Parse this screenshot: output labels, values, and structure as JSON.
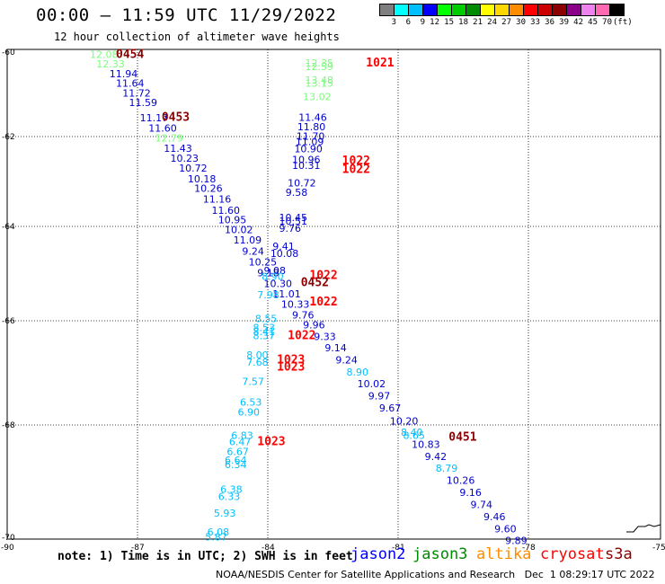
{
  "title": "00:00 – 11:59 UTC 11/29/2022",
  "subtitle": "12 hour collection of altimeter wave heights",
  "scale": {
    "labels": [
      "3",
      "6",
      "9",
      "12",
      "15",
      "18",
      "21",
      "24",
      "27",
      "30",
      "33",
      "36",
      "39",
      "42",
      "45",
      "70"
    ],
    "unit": "(ft)",
    "colors": [
      "#7f7f7f",
      "#00ffff",
      "#00bfff",
      "#0000ff",
      "#00ff00",
      "#00cd00",
      "#008b00",
      "#ffff00",
      "#ffd700",
      "#ff8c00",
      "#ff0000",
      "#cd0000",
      "#8b0000",
      "#8b008b",
      "#ee82ee",
      "#ff69b4",
      "#000000"
    ]
  },
  "axes": {
    "lat_labels": [
      "-60",
      "-62",
      "-64",
      "-66",
      "-68",
      "-70"
    ],
    "lon_labels": [
      "-90",
      "-87",
      "-84",
      "-81",
      "-78",
      "-75"
    ]
  },
  "observations": [
    {
      "v": "12.08",
      "c": "#7cfc7c",
      "lon": -88.1,
      "lat": -60.12
    },
    {
      "v": "12.33",
      "c": "#7cfc7c",
      "lon": -87.95,
      "lat": -60.32
    },
    {
      "v": "11.94",
      "c": "#0000cd",
      "lon": -87.65,
      "lat": -60.52
    },
    {
      "v": "11.64",
      "c": "#0000cd",
      "lon": -87.5,
      "lat": -60.72
    },
    {
      "v": "11.72",
      "c": "#0000cd",
      "lon": -87.35,
      "lat": -60.92
    },
    {
      "v": "11.59",
      "c": "#0000cd",
      "lon": -87.2,
      "lat": -61.12
    },
    {
      "v": "11.17",
      "c": "#0000cd",
      "lon": -86.95,
      "lat": -61.43
    },
    {
      "v": "11.60",
      "c": "#0000cd",
      "lon": -86.75,
      "lat": -61.65
    },
    {
      "v": "12.79",
      "c": "#7cfc7c",
      "lon": -86.6,
      "lat": -61.85
    },
    {
      "v": "11.43",
      "c": "#0000cd",
      "lon": -86.4,
      "lat": -62.07
    },
    {
      "v": "10.23",
      "c": "#0000cd",
      "lon": -86.25,
      "lat": -62.27
    },
    {
      "v": "10.72",
      "c": "#0000cd",
      "lon": -86.05,
      "lat": -62.48
    },
    {
      "v": "10.18",
      "c": "#0000cd",
      "lon": -85.85,
      "lat": -62.7
    },
    {
      "v": "10.26",
      "c": "#0000cd",
      "lon": -85.7,
      "lat": -62.9
    },
    {
      "v": "11.16",
      "c": "#0000cd",
      "lon": -85.5,
      "lat": -63.12
    },
    {
      "v": "11.60",
      "c": "#0000cd",
      "lon": -85.3,
      "lat": -63.35
    },
    {
      "v": "10.95",
      "c": "#0000cd",
      "lon": -85.15,
      "lat": -63.55
    },
    {
      "v": "10.02",
      "c": "#0000cd",
      "lon": -85.0,
      "lat": -63.75
    },
    {
      "v": "11.09",
      "c": "#0000cd",
      "lon": -84.8,
      "lat": -63.97
    },
    {
      "v": "9.24",
      "c": "#0000cd",
      "lon": -84.6,
      "lat": -64.2
    },
    {
      "v": "10.25",
      "c": "#0000cd",
      "lon": -84.45,
      "lat": -64.42
    },
    {
      "v": "9.18",
      "c": "#0000cd",
      "lon": -84.25,
      "lat": -64.65
    },
    {
      "v": "10.30",
      "c": "#0000cd",
      "lon": -84.1,
      "lat": -64.87
    },
    {
      "v": "11.01",
      "c": "#0000cd",
      "lon": -83.9,
      "lat": -65.08
    },
    {
      "v": "10.33",
      "c": "#0000cd",
      "lon": -83.7,
      "lat": -65.3
    },
    {
      "v": "9.76",
      "c": "#0000cd",
      "lon": -83.45,
      "lat": -65.52
    },
    {
      "v": "9.96",
      "c": "#0000cd",
      "lon": -83.2,
      "lat": -65.73
    },
    {
      "v": "9.33",
      "c": "#0000cd",
      "lon": -82.95,
      "lat": -65.97
    },
    {
      "v": "9.14",
      "c": "#0000cd",
      "lon": -82.7,
      "lat": -66.2
    },
    {
      "v": "9.24",
      "c": "#0000cd",
      "lon": -82.45,
      "lat": -66.45
    },
    {
      "v": "8.90",
      "c": "#00bfff",
      "lon": -82.2,
      "lat": -66.7
    },
    {
      "v": "10.02",
      "c": "#0000cd",
      "lon": -81.95,
      "lat": -66.95
    },
    {
      "v": "9.97",
      "c": "#0000cd",
      "lon": -81.7,
      "lat": -67.2
    },
    {
      "v": "9.67",
      "c": "#0000cd",
      "lon": -81.45,
      "lat": -67.45
    },
    {
      "v": "10.20",
      "c": "#0000cd",
      "lon": -81.2,
      "lat": -67.72
    },
    {
      "v": "8.40",
      "c": "#00bfff",
      "lon": -80.95,
      "lat": -67.95
    },
    {
      "v": "8.65",
      "c": "#00bfff",
      "lon": -80.9,
      "lat": -68.02
    },
    {
      "v": "10.83",
      "c": "#0000cd",
      "lon": -80.7,
      "lat": -68.2
    },
    {
      "v": "9.42",
      "c": "#0000cd",
      "lon": -80.4,
      "lat": -68.45
    },
    {
      "v": "8.79",
      "c": "#00bfff",
      "lon": -80.15,
      "lat": -68.7
    },
    {
      "v": "10.26",
      "c": "#0000cd",
      "lon": -79.9,
      "lat": -68.95
    },
    {
      "v": "9.16",
      "c": "#0000cd",
      "lon": -79.6,
      "lat": -69.2
    },
    {
      "v": "9.74",
      "c": "#0000cd",
      "lon": -79.35,
      "lat": -69.45
    },
    {
      "v": "9.46",
      "c": "#0000cd",
      "lon": -79.05,
      "lat": -69.7
    },
    {
      "v": "9.60",
      "c": "#0000cd",
      "lon": -78.8,
      "lat": -69.95
    },
    {
      "v": "9.89",
      "c": "#0000cd",
      "lon": -78.55,
      "lat": -70.2
    },
    {
      "v": "12.35",
      "c": "#7cfc7c",
      "lon": -83.15,
      "lat": -60.3
    },
    {
      "v": "12.59",
      "c": "#7cfc7c",
      "lon": -83.15,
      "lat": -60.37
    },
    {
      "v": "13.48",
      "c": "#7cfc7c",
      "lon": -83.15,
      "lat": -60.65
    },
    {
      "v": "13.15",
      "c": "#7cfc7c",
      "lon": -83.15,
      "lat": -60.72
    },
    {
      "v": "13.02",
      "c": "#7cfc7c",
      "lon": -83.2,
      "lat": -61.0
    },
    {
      "v": "11.46",
      "c": "#0000cd",
      "lon": -83.3,
      "lat": -61.42
    },
    {
      "v": "11.80",
      "c": "#0000cd",
      "lon": -83.33,
      "lat": -61.62
    },
    {
      "v": "11.70",
      "c": "#0000cd",
      "lon": -83.35,
      "lat": -61.82
    },
    {
      "v": "11.09",
      "c": "#0000cd",
      "lon": -83.37,
      "lat": -61.93
    },
    {
      "v": "10.90",
      "c": "#0000cd",
      "lon": -83.4,
      "lat": -62.08
    },
    {
      "v": "10.96",
      "c": "#0000cd",
      "lon": -83.45,
      "lat": -62.3
    },
    {
      "v": "10.31",
      "c": "#0000cd",
      "lon": -83.45,
      "lat": -62.42
    },
    {
      "v": "10.72",
      "c": "#0000cd",
      "lon": -83.55,
      "lat": -62.78
    },
    {
      "v": "9.58",
      "c": "#0000cd",
      "lon": -83.6,
      "lat": -62.98
    },
    {
      "v": "10.45",
      "c": "#0000cd",
      "lon": -83.75,
      "lat": -63.5
    },
    {
      "v": "10.51",
      "c": "#0000cd",
      "lon": -83.75,
      "lat": -63.58
    },
    {
      "v": "9.76",
      "c": "#0000cd",
      "lon": -83.75,
      "lat": -63.72
    },
    {
      "v": "9.41",
      "c": "#0000cd",
      "lon": -83.9,
      "lat": -64.1
    },
    {
      "v": "10.08",
      "c": "#0000cd",
      "lon": -83.95,
      "lat": -64.25
    },
    {
      "v": "9.08",
      "c": "#0000cd",
      "lon": -84.1,
      "lat": -64.6
    },
    {
      "v": "8.90",
      "c": "#00bfff",
      "lon": -84.15,
      "lat": -64.72
    },
    {
      "v": "7.98",
      "c": "#00bfff",
      "lon": -84.25,
      "lat": -65.1
    },
    {
      "v": "8.55",
      "c": "#00bfff",
      "lon": -84.3,
      "lat": -65.6
    },
    {
      "v": "8.53",
      "c": "#00bfff",
      "lon": -84.35,
      "lat": -65.78
    },
    {
      "v": "8.41",
      "c": "#00bfff",
      "lon": -84.35,
      "lat": -65.87
    },
    {
      "v": "8.37",
      "c": "#00bfff",
      "lon": -84.35,
      "lat": -65.95
    },
    {
      "v": "8.00",
      "c": "#00bfff",
      "lon": -84.5,
      "lat": -66.35
    },
    {
      "v": "7.68",
      "c": "#00bfff",
      "lon": -84.5,
      "lat": -66.5
    },
    {
      "v": "7.57",
      "c": "#00bfff",
      "lon": -84.6,
      "lat": -66.9
    },
    {
      "v": "6.53",
      "c": "#00bfff",
      "lon": -84.65,
      "lat": -67.33
    },
    {
      "v": "6.90",
      "c": "#00bfff",
      "lon": -84.7,
      "lat": -67.53
    },
    {
      "v": "6.83",
      "c": "#00bfff",
      "lon": -84.85,
      "lat": -68.02
    },
    {
      "v": "6.47",
      "c": "#00bfff",
      "lon": -84.9,
      "lat": -68.15
    },
    {
      "v": "6.67",
      "c": "#00bfff",
      "lon": -84.95,
      "lat": -68.35
    },
    {
      "v": "6.64",
      "c": "#00bfff",
      "lon": -85.0,
      "lat": -68.53
    },
    {
      "v": "6.34",
      "c": "#00bfff",
      "lon": -85.0,
      "lat": -68.62
    },
    {
      "v": "6.38",
      "c": "#00bfff",
      "lon": -85.1,
      "lat": -69.13
    },
    {
      "v": "6.33",
      "c": "#00bfff",
      "lon": -85.15,
      "lat": -69.28
    },
    {
      "v": "5.93",
      "c": "#00bfff",
      "lon": -85.25,
      "lat": -69.63
    },
    {
      "v": "6.08",
      "c": "#00bfff",
      "lon": -85.4,
      "lat": -70.02
    },
    {
      "v": "5.87",
      "c": "#00bfff",
      "lon": -85.45,
      "lat": -70.12
    }
  ],
  "time_stamps": [
    {
      "t": "0454",
      "c": "#8b0000",
      "lon": -87.5,
      "lat": -60.12
    },
    {
      "t": "0453",
      "c": "#8b0000",
      "lon": -86.45,
      "lat": -61.42
    },
    {
      "t": "1021",
      "c": "#ff0000",
      "lon": -81.75,
      "lat": -60.3
    },
    {
      "t": "1022",
      "c": "#ff0000",
      "lon": -82.3,
      "lat": -62.33
    },
    {
      "t": "1022",
      "c": "#ff0000",
      "lon": -82.3,
      "lat": -62.5
    },
    {
      "t": "1022",
      "c": "#ff0000",
      "lon": -83.05,
      "lat": -64.7
    },
    {
      "t": "0452",
      "c": "#8b0000",
      "lon": -83.25,
      "lat": -64.85
    },
    {
      "t": "1022",
      "c": "#ff0000",
      "lon": -83.05,
      "lat": -65.25
    },
    {
      "t": "1022",
      "c": "#ff0000",
      "lon": -83.55,
      "lat": -65.95
    },
    {
      "t": "1023",
      "c": "#ff0000",
      "lon": -83.8,
      "lat": -66.45
    },
    {
      "t": "1023",
      "c": "#ff0000",
      "lon": -83.8,
      "lat": -66.6
    },
    {
      "t": "1023",
      "c": "#ff0000",
      "lon": -84.25,
      "lat": -68.15
    },
    {
      "t": "0451",
      "c": "#8b0000",
      "lon": -79.85,
      "lat": -68.05
    }
  ],
  "note": "note: 1) Time is in UTC; 2) SWH is in feet",
  "satellites": [
    {
      "name": "jason2",
      "color": "#0000ff"
    },
    {
      "name": "jason3",
      "color": "#008b00"
    },
    {
      "name": "altika",
      "color": "#ff8c00"
    },
    {
      "name": "cryosat",
      "color": "#ff0000"
    },
    {
      "name": "s3a",
      "color": "#8b0000"
    }
  ],
  "credit": "NOAA/NESDIS Center for Satellite Applications and Research   Dec  1 08:29:17 UTC 2022"
}
